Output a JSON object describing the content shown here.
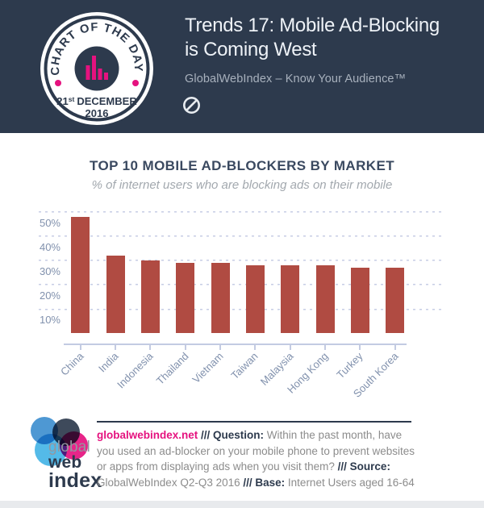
{
  "header": {
    "title_line1": "Trends 17: Mobile Ad-Blocking",
    "title_line2": "is Coming West",
    "subtitle": "GlobalWebIndex – Know Your Audience™",
    "badge": {
      "ring_text": "CHART OF THE DAY",
      "date_day": "21",
      "date_suffix": "st",
      "date_month": "DECEMBER",
      "date_year": "2016"
    },
    "colors": {
      "background": "#2d3a4d",
      "accent_magenta": "#e5127f"
    }
  },
  "chart_data": {
    "type": "bar",
    "title": "TOP 10 MOBILE AD-BLOCKERS BY MARKET",
    "subtitle": "% of internet users who are blocking ads on their mobile",
    "categories": [
      "China",
      "India",
      "Indonesia",
      "Thailand",
      "Vietnam",
      "Taiwan",
      "Malaysia",
      "Hong Kong",
      "Turkey",
      "South Korea"
    ],
    "values": [
      48,
      32,
      30,
      29,
      29,
      28,
      28,
      28,
      27,
      27
    ],
    "xlabel": "",
    "ylabel": "% of internet users blocking ads on mobile",
    "ylim": [
      0,
      55
    ],
    "yticks": [
      10,
      20,
      30,
      40,
      50
    ],
    "ytick_suffix": "%",
    "grid": "horizontal-dotted",
    "legend": "none",
    "bar_color": "#b04b42"
  },
  "footer": {
    "logo": {
      "line1": "global",
      "line2": "web",
      "line3": "index"
    },
    "note_segments": [
      {
        "text": "globalwebindex.net",
        "style": "link"
      },
      {
        "text": " /// ",
        "style": "bold"
      },
      {
        "text": "Question:",
        "style": "bold"
      },
      {
        "text": " Within the past month, have you used an ad-blocker on your mobile phone to prevent websites or apps from displaying ads when you visit them? ",
        "style": "normal"
      },
      {
        "text": "/// ",
        "style": "bold"
      },
      {
        "text": "Source:",
        "style": "bold"
      },
      {
        "text": " GlobalWebIndex Q2-Q3 2016 ",
        "style": "normal"
      },
      {
        "text": "/// ",
        "style": "bold"
      },
      {
        "text": "Base:",
        "style": "bold"
      },
      {
        "text": " Internet Users aged 16-64",
        "style": "normal"
      }
    ]
  }
}
